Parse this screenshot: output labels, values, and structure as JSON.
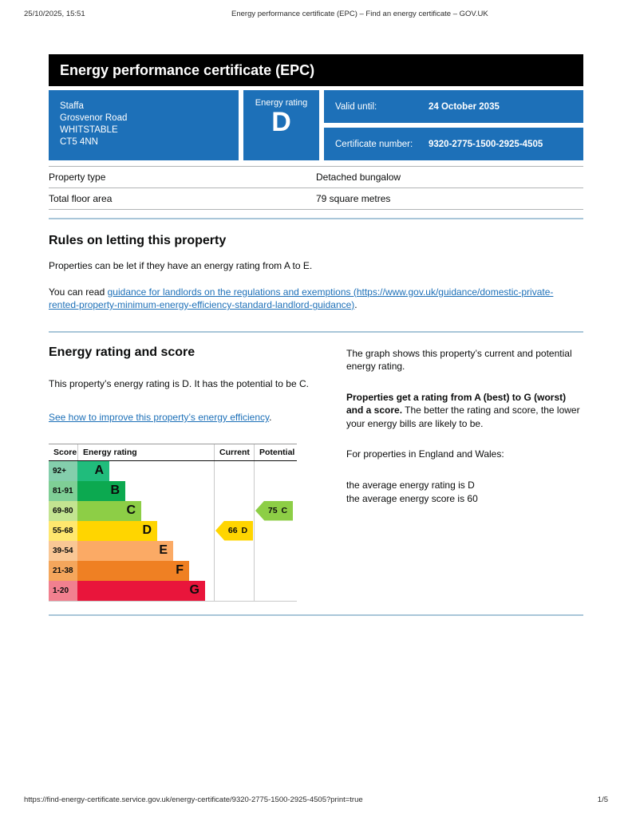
{
  "colors": {
    "govuk_blue": "#1d70b8",
    "link_blue": "#1d70b8",
    "divider_blue": "#a9c6d9",
    "banner_bg": "#000000",
    "current_arrow": "#ffd500",
    "potential_arrow": "#8dce46"
  },
  "print_header": {
    "datetime": "25/10/2025, 15:51",
    "title": "Energy performance certificate (EPC) – Find an energy certificate – GOV.UK"
  },
  "print_footer": {
    "url": "https://find-energy-certificate.service.gov.uk/energy-certificate/9320-2775-1500-2925-4505?print=true",
    "page": "1/5"
  },
  "banner": {
    "title": "Energy performance certificate (EPC)"
  },
  "summary": {
    "address_lines": [
      "Staffa",
      "Grosvenor Road",
      "WHITSTABLE",
      "CT5 4NN"
    ],
    "energy_rating_label": "Energy rating",
    "energy_rating": "D",
    "valid_until_label": "Valid until:",
    "valid_until": "24 October 2035",
    "certificate_number_label": "Certificate number:",
    "certificate_number": "9320-2775-1500-2925-4505"
  },
  "property_table": {
    "rows": [
      {
        "label": "Property type",
        "value": "Detached bungalow"
      },
      {
        "label": "Total floor area",
        "value": "79 square metres"
      }
    ]
  },
  "letting_rules": {
    "heading": "Rules on letting this property",
    "paragraph1": "Properties can be let if they have an energy rating from A to E.",
    "paragraph2_prefix": "You can read ",
    "link_text": "guidance for landlords on the regulations and exemptions (https://www.gov.uk/guidance/domestic-private-rented-property-minimum-energy-efficiency-standard-landlord-guidance)",
    "paragraph2_suffix": "."
  },
  "rating_section": {
    "heading": "Energy rating and score",
    "intro": "This property’s energy rating is D. It has the potential to be C.",
    "improve_link": "See how to improve this property’s energy efficiency",
    "improve_link_suffix": ".",
    "right_col": {
      "p1": "The graph shows this property’s current and potential energy rating.",
      "p2_bold": "Properties get a rating from A (best) to G (worst) and a score.",
      "p2_rest": " The better the rating and score, the lower your energy bills are likely to be.",
      "p3": "For properties in England and Wales:",
      "avg_line1": "the average energy rating is D",
      "avg_line2": "the average energy score is 60"
    }
  },
  "chart_data": {
    "type": "bar",
    "title": "Energy rating and score",
    "columns": [
      "Score",
      "Energy rating",
      "Current",
      "Potential"
    ],
    "bands": [
      {
        "score_range": "92+",
        "letter": "A",
        "color": "#20bc7c",
        "tint": "#84ceac"
      },
      {
        "score_range": "81-91",
        "letter": "B",
        "color": "#0ca950",
        "tint": "#7fcf96"
      },
      {
        "score_range": "69-80",
        "letter": "C",
        "color": "#8dce46",
        "tint": "#c3e491"
      },
      {
        "score_range": "55-68",
        "letter": "D",
        "color": "#ffd500",
        "tint": "#ffe76e"
      },
      {
        "score_range": "39-54",
        "letter": "E",
        "color": "#fbaa65",
        "tint": "#f9c795"
      },
      {
        "score_range": "21-38",
        "letter": "F",
        "color": "#ef8023",
        "tint": "#f4a65c"
      },
      {
        "score_range": "1-20",
        "letter": "G",
        "color": "#e9153b",
        "tint": "#f1808f"
      }
    ],
    "current": {
      "score": 66,
      "letter": "D",
      "color": "#ffd500"
    },
    "potential": {
      "score": 75,
      "letter": "C",
      "color": "#8dce46"
    }
  }
}
